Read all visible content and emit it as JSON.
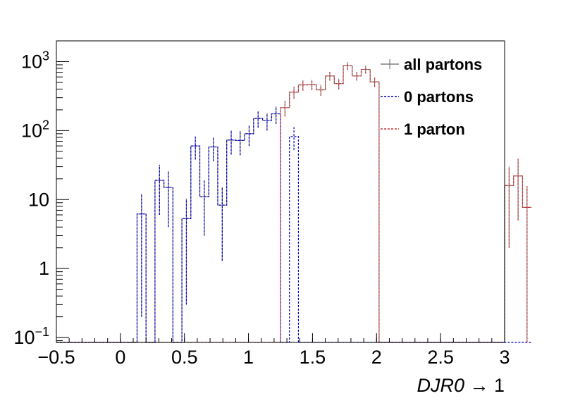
{
  "chart_data": {
    "type": "histogram",
    "xlabel_italic": "DJR0",
    "xlabel_suffix": " → 1",
    "ylabel": "",
    "xlim": [
      -0.5,
      3.0
    ],
    "ylim": [
      0.085,
      2000
    ],
    "y_scale": "log",
    "grid": false,
    "legend_position": "top-right",
    "x_ticks": [
      -0.5,
      0,
      0.5,
      1,
      1.5,
      2,
      2.5,
      3
    ],
    "x_tick_labels": [
      "−0.5",
      "0",
      "0.5",
      "1",
      "1.5",
      "2",
      "2.5",
      "3"
    ],
    "y_ticks": [
      {
        "value": 0.1,
        "base": "10",
        "exp": "−1"
      },
      {
        "value": 1,
        "text": "1"
      },
      {
        "value": 10,
        "text": "10"
      },
      {
        "value": 100,
        "base": "10",
        "exp": "2"
      },
      {
        "value": 1000,
        "base": "10",
        "exp": "3"
      }
    ],
    "bin_width": 0.07,
    "bin_start": -0.5,
    "series": [
      {
        "name": "all partons",
        "color": "#808080",
        "style": "solid",
        "values": [
          0,
          0,
          0,
          0,
          0,
          0,
          0,
          0,
          0,
          6.2,
          0,
          19,
          15,
          0,
          5.3,
          60,
          11,
          58,
          8.3,
          73,
          72,
          90,
          150,
          140,
          175,
          215,
          360,
          460,
          465,
          390,
          620,
          480,
          870,
          620,
          770,
          510,
          0,
          0,
          0,
          0,
          0,
          0,
          0,
          0,
          0,
          0,
          0,
          0,
          0,
          0,
          16,
          22,
          7.7
        ],
        "errors": [
          0,
          0,
          0,
          0,
          0,
          0,
          0,
          0,
          0,
          6,
          0,
          13,
          11,
          0,
          5,
          22,
          8,
          22,
          7,
          28,
          28,
          30,
          40,
          40,
          50,
          55,
          70,
          80,
          80,
          70,
          90,
          85,
          110,
          90,
          100,
          80,
          0,
          0,
          0,
          0,
          0,
          0,
          0,
          0,
          0,
          0,
          0,
          0,
          0,
          0,
          14,
          17,
          8
        ]
      },
      {
        "name": "0 partons",
        "color": "#0000cc",
        "style": "dashed",
        "values": [
          0,
          0,
          0,
          0,
          0,
          0,
          0,
          0,
          0,
          6.2,
          0,
          19,
          15,
          0,
          5.3,
          60,
          11,
          58,
          8.3,
          73,
          72,
          90,
          150,
          140,
          175,
          0,
          82,
          0,
          0,
          0,
          0,
          0,
          0,
          0,
          0,
          0,
          0,
          0,
          0,
          0,
          0,
          0,
          0,
          0,
          0,
          0,
          0,
          0,
          0,
          0,
          0,
          0,
          0
        ],
        "errors": [
          0,
          0,
          0,
          0,
          0,
          0,
          0,
          0,
          0,
          6,
          0,
          13,
          11,
          0,
          5,
          22,
          8,
          22,
          7,
          28,
          28,
          30,
          40,
          40,
          50,
          0,
          30,
          0,
          0,
          0,
          0,
          0,
          0,
          0,
          0,
          0,
          0,
          0,
          0,
          0,
          0,
          0,
          0,
          0,
          0,
          0,
          0,
          0,
          0,
          0,
          0,
          0,
          0
        ]
      },
      {
        "name": "1 parton",
        "color": "#cc3333",
        "style": "dashed",
        "values": [
          0,
          0,
          0,
          0,
          0,
          0,
          0,
          0,
          0,
          0,
          0,
          0,
          0,
          0,
          0,
          0,
          0,
          0,
          0,
          0,
          0,
          0,
          0,
          0,
          0,
          215,
          360,
          460,
          465,
          390,
          620,
          480,
          870,
          620,
          770,
          510,
          0,
          0,
          0,
          0,
          0,
          0,
          0,
          0,
          0,
          0,
          0,
          0,
          0,
          0,
          16,
          22,
          7.7
        ],
        "errors": [
          0,
          0,
          0,
          0,
          0,
          0,
          0,
          0,
          0,
          0,
          0,
          0,
          0,
          0,
          0,
          0,
          0,
          0,
          0,
          0,
          0,
          0,
          0,
          0,
          0,
          55,
          70,
          80,
          80,
          70,
          90,
          85,
          110,
          90,
          100,
          80,
          0,
          0,
          0,
          0,
          0,
          0,
          0,
          0,
          0,
          0,
          0,
          0,
          0,
          0,
          14,
          17,
          8
        ]
      }
    ]
  }
}
